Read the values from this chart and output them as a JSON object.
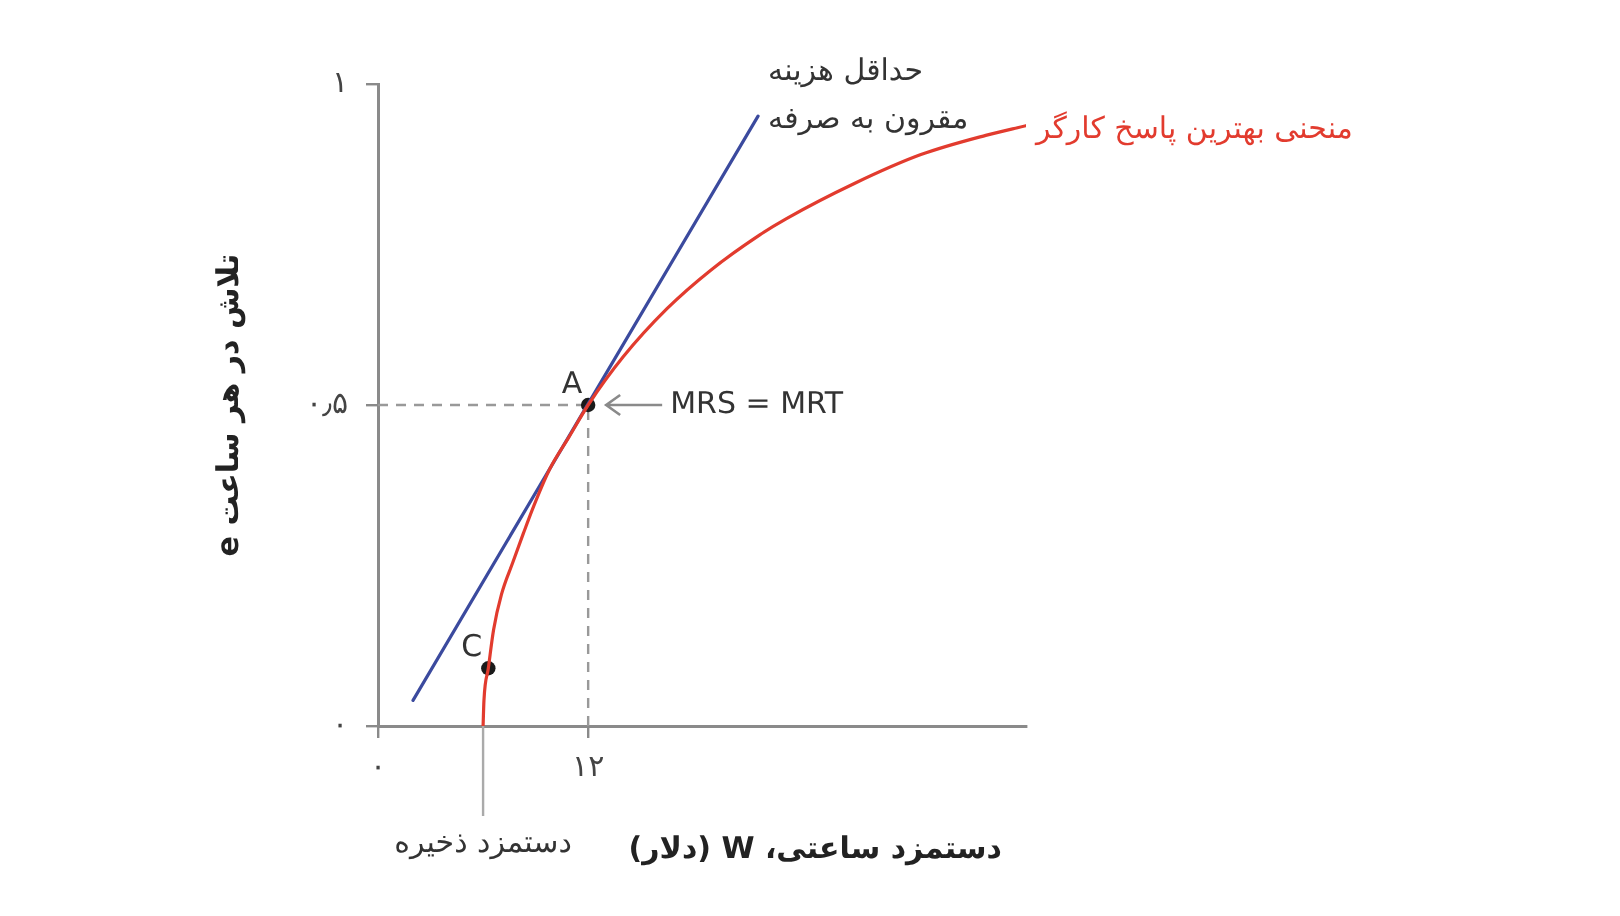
{
  "chart_data": {
    "type": "line",
    "xlabel": "دستمزد ساعتی، W (دلار)",
    "ylabel": "تلاش در هر ساعت e",
    "xlim": [
      0,
      37
    ],
    "ylim": [
      0,
      1
    ],
    "xticks": [
      {
        "value": 0,
        "label": "۰"
      },
      {
        "value": 12,
        "label": "۱۲"
      }
    ],
    "yticks": [
      {
        "value": 0,
        "label": "۰"
      },
      {
        "value": 0.5,
        "label": "۰٫۵"
      },
      {
        "value": 1,
        "label": "۱"
      }
    ],
    "series": [
      {
        "name": "منحنی بهترین پاسخ کارگر",
        "color": "#e23b2e",
        "x": [
          6,
          6.05,
          6.3,
          6.6,
          7.05,
          7.7,
          8.3,
          9,
          9.8,
          10.9,
          12,
          14,
          16.5,
          19,
          21.8,
          23.3,
          27.2,
          31,
          34.7,
          37
        ],
        "values": [
          0,
          0.04,
          0.09,
          0.15,
          0.205,
          0.255,
          0.3,
          0.35,
          0.4,
          0.45,
          0.5,
          0.575,
          0.65,
          0.71,
          0.765,
          0.79,
          0.845,
          0.89,
          0.92,
          0.935
        ]
      },
      {
        "name": "حداقل هزینه مقرون به صرفه",
        "color": "#3b4a9e",
        "x": [
          2,
          21.7
        ],
        "values": [
          0.04,
          0.95
        ]
      },
      {
        "type": "scatter",
        "color": "#1a1a1a",
        "marker": "circle",
        "x": [
          12,
          6.3
        ],
        "values": [
          0.5,
          0.09
        ]
      }
    ],
    "ref_lines": [
      {
        "axis": "x",
        "value": 12,
        "color": "#999999",
        "line_style": "dashed"
      },
      {
        "axis": "y",
        "value": 0.5,
        "color": "#999999",
        "line_style": "dashed"
      }
    ],
    "annotations": [
      {
        "text": "A",
        "x": 12,
        "y": 0.5
      },
      {
        "text": "C",
        "x": 6.3,
        "y": 0.09
      },
      {
        "text": "MRS = MRT",
        "x": 12,
        "y": 0.5
      },
      {
        "text": "دستمزد ذخیره",
        "x": 6,
        "y": 0
      }
    ],
    "grid": false,
    "legend": false
  }
}
